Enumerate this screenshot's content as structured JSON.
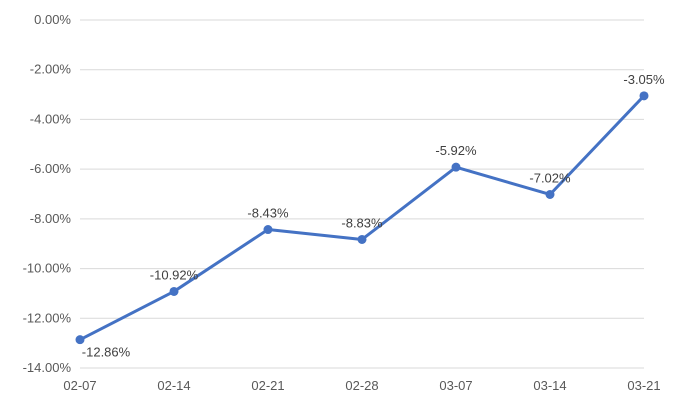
{
  "chart_data": {
    "type": "line",
    "categories": [
      "02-07",
      "02-14",
      "02-21",
      "02-28",
      "03-07",
      "03-14",
      "03-21"
    ],
    "series": [
      {
        "values": [
          -12.86,
          -10.92,
          -8.43,
          -8.83,
          -5.92,
          -7.02,
          -3.05
        ],
        "data_labels": [
          "-12.86%",
          "-10.92%",
          "-8.43%",
          "-8.83%",
          "-5.92%",
          "-7.02%",
          "-3.05%"
        ],
        "color": "#4472C4"
      }
    ],
    "y_ticks": [
      "0.00%",
      "-2.00%",
      "-4.00%",
      "-6.00%",
      "-8.00%",
      "-10.00%",
      "-12.00%",
      "-14.00%"
    ],
    "ylim": [
      -14,
      0
    ],
    "grid": true,
    "legend": "none",
    "title": "",
    "xlabel": "",
    "ylabel": "",
    "colors": {
      "line": "#4472C4",
      "grid": "#d9d9d9",
      "text": "#595959"
    }
  }
}
